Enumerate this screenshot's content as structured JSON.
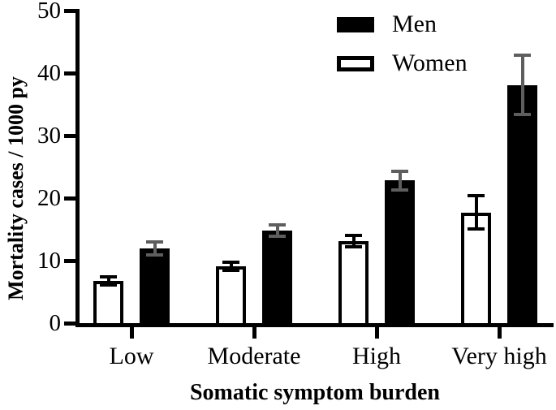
{
  "figure": {
    "background": "#ffffff",
    "text_color": "#000000"
  },
  "chart_data": {
    "type": "bar",
    "title": "",
    "xlabel": "Somatic symptom burden",
    "ylabel": "Mortality cases / 1000 py",
    "categories": [
      "Low",
      "Moderate",
      "High",
      "Very high"
    ],
    "group_bar_order": [
      "Women",
      "Men"
    ],
    "series": [
      {
        "name": "Men",
        "fill": "#000000",
        "outline": "#000000",
        "error_color": "#5e5e5e",
        "values": [
          12.0,
          14.8,
          22.8,
          38.1
        ],
        "errors": [
          1.3,
          1.2,
          1.8,
          5.0
        ]
      },
      {
        "name": "Women",
        "fill": "#ffffff",
        "outline": "#000000",
        "error_color": "#000000",
        "values": [
          6.8,
          9.1,
          13.1,
          17.7
        ],
        "errors": [
          0.9,
          0.9,
          1.2,
          2.9
        ]
      }
    ],
    "ylim": [
      0,
      50
    ],
    "yticks": [
      0,
      10,
      20,
      30,
      40,
      50
    ],
    "error_bar_style": "symmetric, capped, overlaid on bars",
    "legend": {
      "position": "top-right",
      "entries": [
        "Men",
        "Women"
      ]
    },
    "grid": false
  }
}
